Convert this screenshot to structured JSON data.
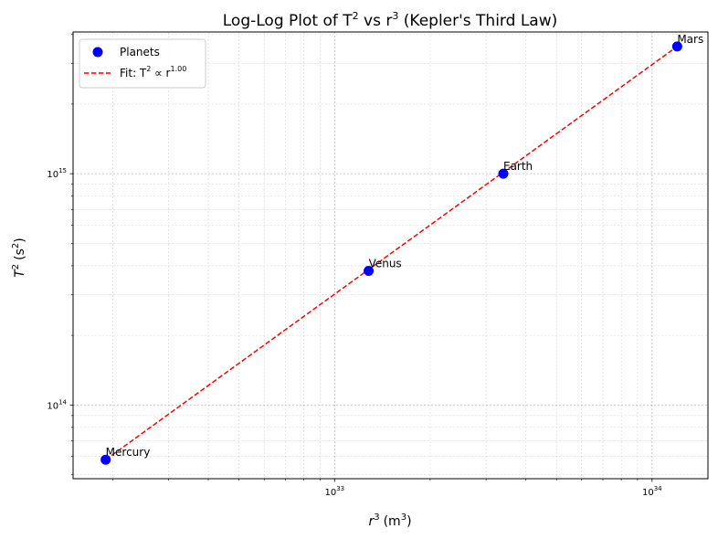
{
  "chart_data": {
    "type": "scatter",
    "title": "Log-Log Plot of T² vs r³ (Kepler's Third Law)",
    "title_parts": {
      "pre": "Log-Log Plot of T",
      "mid": " vs r",
      "post": " (Kepler's Third Law)",
      "exp2": "2",
      "exp3": "3"
    },
    "xlabel": {
      "var": "r",
      "var_exp": "3",
      "unit": "(m",
      "unit_exp": "3",
      "unit_close": ")"
    },
    "ylabel": {
      "var": "T",
      "var_exp": "2",
      "unit": "(s",
      "unit_exp": "2",
      "unit_close": ")"
    },
    "xscale": "log",
    "yscale": "log",
    "xlim": [
      1.5e+32,
      1.5e+34
    ],
    "ylim": [
      48000000000000.0,
      4100000000000000.0
    ],
    "grid": true,
    "legend_position": "top-left",
    "x_ticks": [
      {
        "value": 1e+33,
        "base": "10",
        "exp": "33"
      },
      {
        "value": 1e+34,
        "base": "10",
        "exp": "34"
      }
    ],
    "y_ticks": [
      {
        "value": 100000000000000.0,
        "base": "10",
        "exp": "14"
      },
      {
        "value": 1000000000000000.0,
        "base": "10",
        "exp": "15"
      }
    ],
    "series": [
      {
        "name": "Planets",
        "kind": "scatter",
        "color": "#0000ff",
        "points": [
          {
            "label": "Mercury",
            "x": 1.9e+32,
            "y": 58000000000000.0
          },
          {
            "label": "Venus",
            "x": 1.28e+33,
            "y": 380000000000000.0
          },
          {
            "label": "Earth",
            "x": 3.4e+33,
            "y": 1000000000000000.0
          },
          {
            "label": "Mars",
            "x": 1.2e+34,
            "y": 3550000000000000.0
          }
        ]
      },
      {
        "name": "Fit: T² ∝ r^1.00",
        "kind": "line",
        "color": "#ff0000",
        "legend_parts": {
          "pre": "Fit: T",
          "exp2": "2",
          "mid": " ∝ r",
          "exp_fit": "1.00"
        },
        "x": [
          1.9e+32,
          1.2e+34
        ],
        "y": [
          58000000000000.0,
          3550000000000000.0
        ]
      }
    ]
  }
}
